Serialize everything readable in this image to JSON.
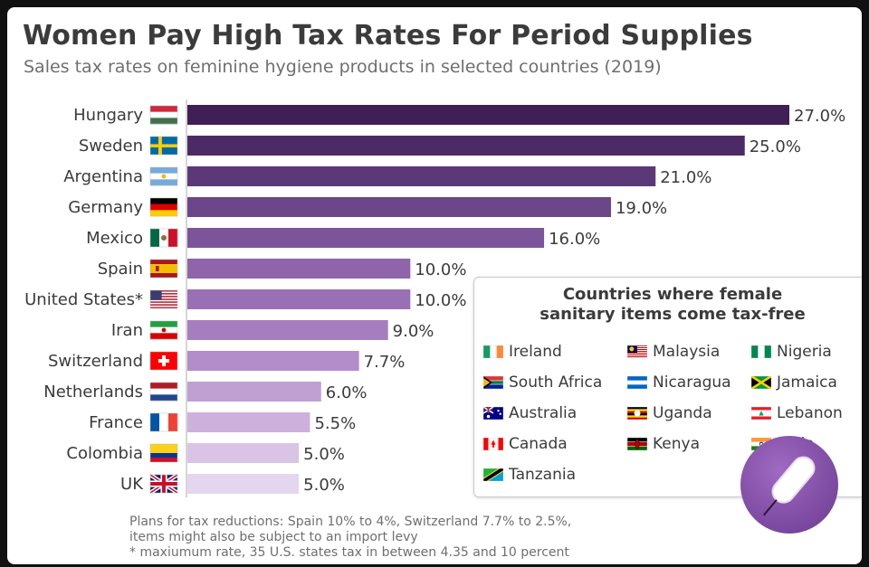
{
  "title": "Women Pay High Tax Rates For Period Supplies",
  "subtitle": "Sales tax rates on feminine hygiene products in selected countries (2019)",
  "chart_data": {
    "type": "bar",
    "orientation": "horizontal",
    "categories": [
      "Hungary",
      "Sweden",
      "Argentina",
      "Germany",
      "Mexico",
      "Spain",
      "United States*",
      "Iran",
      "Switzerland",
      "Netherlands",
      "France",
      "Colombia",
      "UK"
    ],
    "values": [
      27.0,
      25.0,
      21.0,
      19.0,
      16.0,
      10.0,
      10.0,
      9.0,
      7.7,
      6.0,
      5.5,
      5.0,
      5.0
    ],
    "value_labels": [
      "27.0%",
      "25.0%",
      "21.0%",
      "19.0%",
      "16.0%",
      "10.0%",
      "10.0%",
      "9.0%",
      "7.7%",
      "6.0%",
      "5.5%",
      "5.0%",
      "5.0%"
    ],
    "bar_colors": [
      "#3f1f56",
      "#4c2a66",
      "#5c3878",
      "#6c4689",
      "#7d549a",
      "#8f64ab",
      "#9a70b5",
      "#a67dbf",
      "#b38dc9",
      "#c09fd2",
      "#cdb1dc",
      "#dac4e6",
      "#e5d6ef"
    ],
    "xlim": [
      0,
      27
    ],
    "grid": false
  },
  "legend": {
    "title_line1": "Countries where female",
    "title_line2": "sanitary items come tax-free",
    "items": [
      "Ireland",
      "Malaysia",
      "Nigeria",
      "South Africa",
      "Nicaragua",
      "Jamaica",
      "Australia",
      "Uganda",
      "Lebanon",
      "Canada",
      "Kenya",
      "India",
      "Tanzania"
    ]
  },
  "footnote": {
    "line1": "Plans for tax reductions: Spain 10% to 4%, Switzerland 7.7% to 2.5%,",
    "line2": "items might also be subject to an import levy",
    "line3": "* maxiumum rate, 35 U.S. states tax in between 4.35 and 10 percent"
  },
  "icons": {
    "flags": "country-flag-icons",
    "badge": "tampon-icon"
  },
  "colors": {
    "title": "#3b3b3b",
    "subtitle": "#6f6f6f",
    "axis": "#c8c8c8",
    "badge": "#7d4aa3"
  }
}
